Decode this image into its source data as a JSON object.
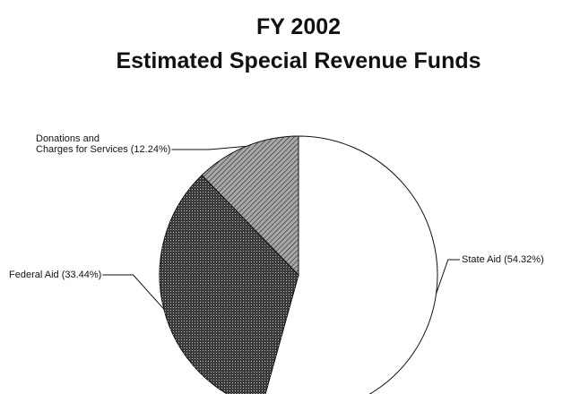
{
  "chart_data": {
    "type": "pie",
    "title": [
      "FY 2002",
      "Estimated Special Revenue Funds"
    ],
    "categories": [
      "State Aid",
      "Federal Aid",
      "Donations and\nCharges for Services"
    ],
    "values": [
      54.32,
      33.44,
      12.24
    ],
    "value_labels": [
      "(54.32%)",
      "(33.44%)",
      "(12.24%)"
    ],
    "colors": [
      "#ffffff",
      "#3a3a3a",
      "#a8a8a8"
    ]
  }
}
